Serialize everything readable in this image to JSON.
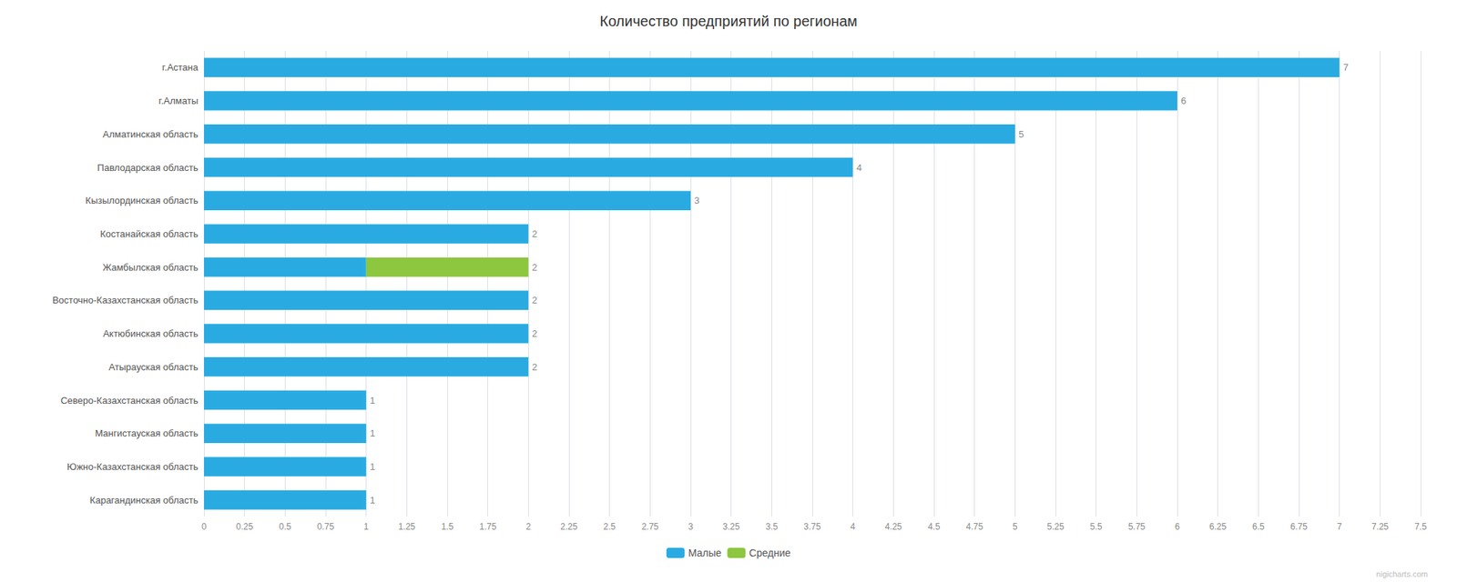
{
  "chart_data": {
    "type": "bar",
    "orientation": "horizontal",
    "stacked": true,
    "title": "Количество предприятий по регионам",
    "categories": [
      "г.Астана",
      "г.Алматы",
      "Алматинская область",
      "Павлодарская область",
      "Кызылординская область",
      "Костанайская область",
      "Жамбылская область",
      "Восточно-Казахстанская область",
      "Актюбинская область",
      "Атырауская область",
      "Северо-Казахстанская область",
      "Мангистауская область",
      "Южно-Казахстанская область",
      "Карагандинская область"
    ],
    "series": [
      {
        "name": "Малые",
        "color": "#29ABE2",
        "values": [
          7,
          6,
          5,
          4,
          3,
          2,
          1,
          2,
          2,
          2,
          1,
          1,
          1,
          1
        ]
      },
      {
        "name": "Средние",
        "color": "#8DC63F",
        "values": [
          0,
          0,
          0,
          0,
          0,
          0,
          1,
          0,
          0,
          0,
          0,
          0,
          0,
          0
        ]
      }
    ],
    "totals": [
      7,
      6,
      5,
      4,
      3,
      2,
      2,
      2,
      2,
      2,
      1,
      1,
      1,
      1
    ],
    "xlim": [
      0,
      7.5
    ],
    "xticks": [
      0,
      0.25,
      0.5,
      0.75,
      1,
      1.25,
      1.5,
      1.75,
      2,
      2.25,
      2.5,
      2.75,
      3,
      3.25,
      3.5,
      3.75,
      4,
      4.25,
      4.5,
      4.75,
      5,
      5.25,
      5.5,
      5.75,
      6,
      6.25,
      6.5,
      6.75,
      7,
      7.25,
      7.5
    ],
    "grid": true,
    "legend": "bottom",
    "annotations": [
      "nigicharts.com"
    ]
  }
}
